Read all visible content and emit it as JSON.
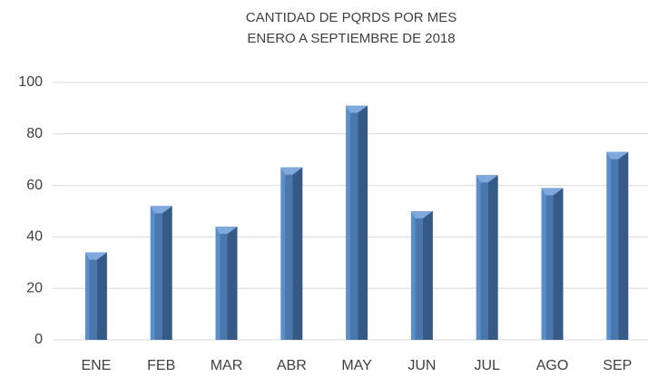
{
  "chart_data": {
    "type": "bar",
    "title": "CANTIDAD DE PQRDS POR MES",
    "subtitle": "ENERO A SEPTIEMBRE DE 2018",
    "categories": [
      "ENE",
      "FEB",
      "MAR",
      "ABR",
      "MAY",
      "JUN",
      "JUL",
      "AGO",
      "SEP"
    ],
    "values": [
      34,
      52,
      44,
      67,
      91,
      50,
      64,
      59,
      73
    ],
    "color": "#4f81bd",
    "ylim": [
      0,
      100
    ],
    "yticks": [
      0,
      20,
      40,
      60,
      80,
      100
    ],
    "grid": true
  }
}
